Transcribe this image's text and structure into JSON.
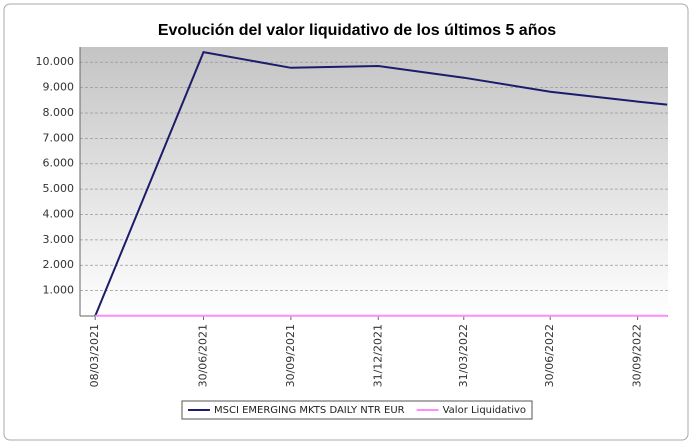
{
  "chart_data": {
    "type": "line",
    "title": "Evolución del valor liquidativo de los últimos 5 años",
    "x": [
      "08/03/2021",
      "30/06/2021",
      "30/09/2021",
      "31/12/2021",
      "31/03/2022",
      "30/06/2022",
      "30/09/2022",
      "31/10/2022"
    ],
    "series": [
      {
        "name": "MSCI EMERGING MKTS DAILY NTR EUR",
        "color": "#1c1c6b",
        "values": [
          0,
          10400,
          9780,
          9850,
          9390,
          8840,
          8450,
          8330
        ]
      },
      {
        "name": "Valor Liquidativo",
        "color": "#ff8cff",
        "values": [
          10,
          11,
          11,
          11,
          10,
          10,
          10,
          10
        ]
      }
    ],
    "xlim": [
      "20/02/2021",
      "01/11/2022"
    ],
    "xticks": [
      "08/03/2021",
      "30/06/2021",
      "30/09/2021",
      "31/12/2021",
      "31/03/2022",
      "30/06/2022",
      "30/09/2022"
    ],
    "ylim": [
      0,
      10600
    ],
    "yticks": [
      {
        "value": 1000,
        "label": "1.000"
      },
      {
        "value": 2000,
        "label": "2.000"
      },
      {
        "value": 3000,
        "label": "3.000"
      },
      {
        "value": 4000,
        "label": "4.000"
      },
      {
        "value": 5000,
        "label": "5.000"
      },
      {
        "value": 6000,
        "label": "6.000"
      },
      {
        "value": 7000,
        "label": "7.000"
      },
      {
        "value": 8000,
        "label": "8.000"
      },
      {
        "value": 9000,
        "label": "9.000"
      },
      {
        "value": 10000,
        "label": "10.000"
      }
    ],
    "grid": true,
    "legend": "bottom"
  }
}
